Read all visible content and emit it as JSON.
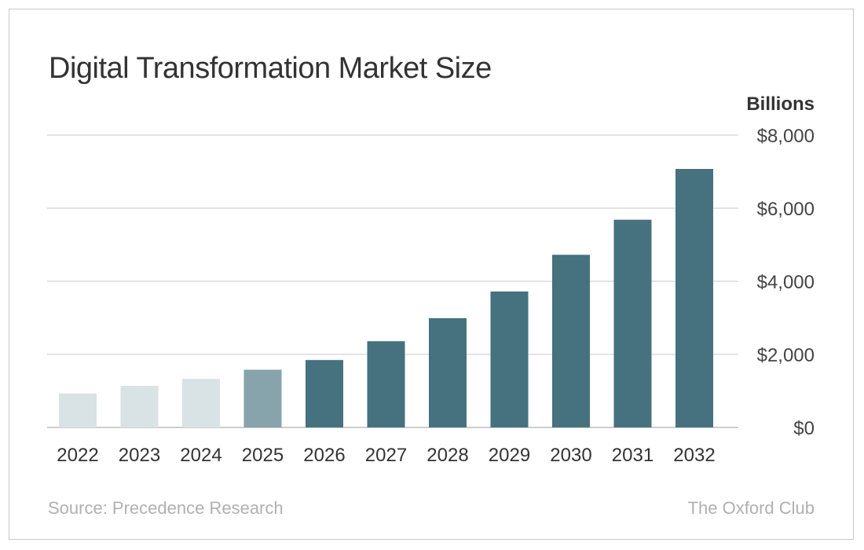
{
  "chart_data": {
    "type": "bar",
    "title": "Digital Transformation Market Size",
    "ylabel": "Billions",
    "categories": [
      "2022",
      "2023",
      "2024",
      "2025",
      "2026",
      "2027",
      "2028",
      "2029",
      "2030",
      "2031",
      "2032"
    ],
    "values": [
      930,
      1140,
      1330,
      1580,
      1845,
      2360,
      2990,
      3720,
      4725,
      5685,
      7075
    ],
    "bar_colors": [
      "#d9e2e5",
      "#d9e2e5",
      "#d9e2e5",
      "#87a3ab",
      "#46717f",
      "#46717f",
      "#46717f",
      "#46717f",
      "#46717f",
      "#46717f",
      "#46717f"
    ],
    "ylim": [
      0,
      8000
    ],
    "yticks": [
      0,
      2000,
      4000,
      6000,
      8000
    ],
    "ytick_labels": [
      "$0",
      "$2,000",
      "$4,000",
      "$6,000",
      "$8,000"
    ],
    "grid": true,
    "yaxis_position": "right"
  },
  "footer": {
    "source": "Source: Precedence Research",
    "brand": "The Oxford Club"
  }
}
